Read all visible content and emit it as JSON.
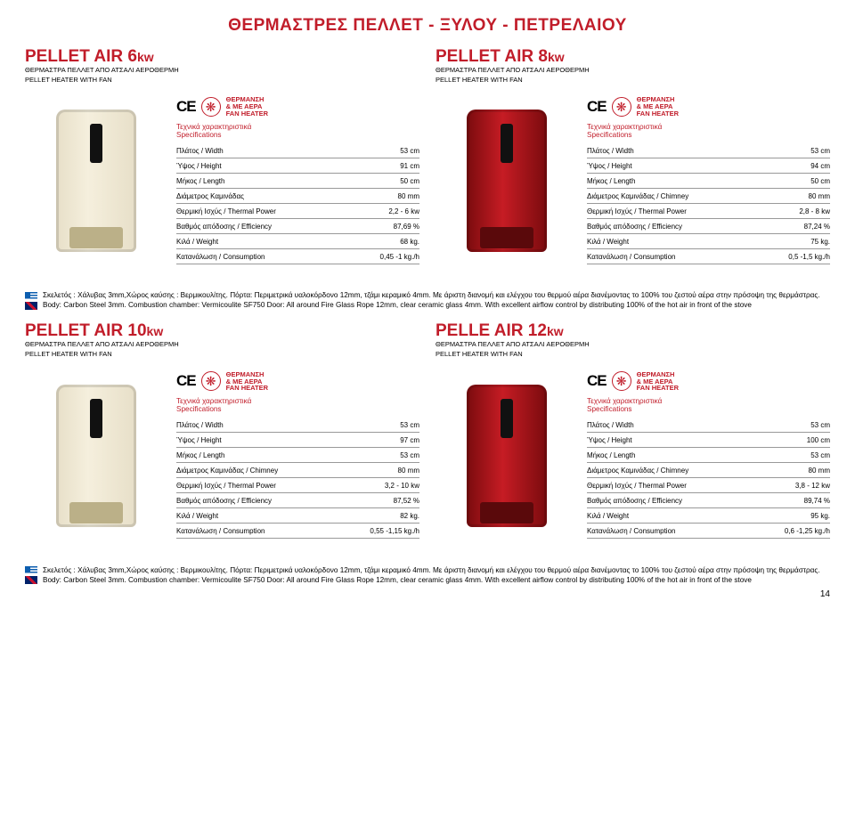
{
  "mainTitle": "ΘΕΡΜΑΣΤΡΕΣ ΠΕΛΛΕΤ - ΞΥΛΟΥ - ΠΕΤΡΕΛΑΙΟΥ",
  "ce": "CE",
  "fanGlyph": "❋",
  "fanHeater": {
    "l1": "ΘΕΡΜΑΝΣΗ",
    "l2": "& ΜΕ ΑΕΡΑ",
    "l3": "FAN HEATER"
  },
  "specHead": {
    "l1": "Τεχνικά χαρακτηριστικά",
    "l2": "Specifications"
  },
  "labels": {
    "width": "Πλάτος / Width",
    "height": "Ύψος / Height",
    "length": "Μήκος / Length",
    "chimney": "Διάμετρος Καμινάδας",
    "chimney2": "Διάμετρος Καμινάδας / Chimney",
    "power": "Θερμική Ισχύς / Thermal Power",
    "eff": "Βαθμός απόδοσης / Efficiency",
    "weight": "Κιλά / Weight",
    "cons": "Κατανάλωση / Consumption"
  },
  "products": [
    {
      "name": "PELLET AIR 6",
      "kw": "kw",
      "sub1": "ΘΕΡΜΑΣΤΡΑ ΠΕΛΛΕΤ ΑΠΟ ΑΤΣΑΛΙ ΑΕΡΟΘΕΡΜΗ",
      "sub2": "PELLET HEATER WITH FAN",
      "stoveColor": "cream",
      "specs": {
        "width": "53 cm",
        "height": "91 cm",
        "length": "50 cm",
        "chimneyLabel": "chimney",
        "chimney": "80 mm",
        "power": "2,2 - 6 kw",
        "eff": "87,69 %",
        "weight": "68 kg.",
        "cons": "0,45 -1 kg./h"
      }
    },
    {
      "name": "PELLET AIR 8",
      "kw": "kw",
      "sub1": "ΘΕΡΜΑΣΤΡΑ ΠΕΛΛΕΤ ΑΠΟ ΑΤΣΑΛΙ ΑΕΡΟΘΕΡΜΗ",
      "sub2": "PELLET HEATER WITH FAN",
      "stoveColor": "red",
      "specs": {
        "width": "53 cm",
        "height": "94 cm",
        "length": "50 cm",
        "chimneyLabel": "chimney2",
        "chimney": "80 mm",
        "power": "2,8 - 8 kw",
        "eff": "87,24 %",
        "weight": "75 kg.",
        "cons": "0,5 -1,5 kg./h"
      }
    },
    {
      "name": "PELLET AIR 10",
      "kw": "kw",
      "sub1": "ΘΕΡΜΑΣΤΡΑ ΠΕΛΛΕΤ ΑΠΟ ΑΤΣΑΛΙ ΑΕΡΟΘΕΡΜΗ",
      "sub2": "PELLET HEATER WITH FAN",
      "stoveColor": "cream",
      "specs": {
        "width": "53 cm",
        "height": "97 cm",
        "length": "53 cm",
        "chimneyLabel": "chimney2",
        "chimney": "80 mm",
        "power": "3,2 - 10 kw",
        "eff": "87,52 %",
        "weight": "82 kg.",
        "cons": "0,55 -1,15 kg./h"
      }
    },
    {
      "name": "PELLE AIR 12",
      "kw": "kw",
      "sub1": "ΘΕΡΜΑΣΤΡΑ ΠΕΛΛΕΤ ΑΠΟ ΑΤΣΑΛΙ ΑΕΡΟΘΕΡΜΗ",
      "sub2": "PELLET HEATER WITH FAN",
      "stoveColor": "red2",
      "specs": {
        "width": "53 cm",
        "height": "100 cm",
        "length": "53 cm",
        "chimneyLabel": "chimney2",
        "chimney": "80 mm",
        "power": "3,8 - 12 kw",
        "eff": "89,74 %",
        "weight": "95 kg.",
        "cons": "0,6 -1,25 kg./h"
      }
    }
  ],
  "notes": {
    "gr": "Σκελετός : Χάλυβας 3mm,Χώρος καύσης : Βερμικουλίτης. Πόρτα: Περιμετρικά υαλοκόρδονο 12mm, τζάμι κεραμικό 4mm. Με άριστη διανομή και ελέγχου του θερμού αέρα διανέμοντας το 100% του ζεστού αέρα στην πρόσοψη της θερμάστρας.",
    "en": "Body: Carbon Steel 3mm. Combustion chamber: Vermicoulite SF750  Door: All around Fire Glass Rope 12mm, clear ceramic glass 4mm. With excellent airflow control by distributing 100% of the hot air in front of the stove"
  },
  "notes2": {
    "gr": "Σκελετός : Χάλυβας 3mm,Χώρος καύσης : Βερμικουλίτης. Πόρτα: Περιμετρικά υαλοκόρδονο 12mm, τζάμι κεραμικό 4mm. Με άριστη διανομή και ελέγχου του θερμού αέρα διανέμοντας το 100% του ζεστού αέρα στην πρόσοψη της θερμάστρας.",
    "en": "Body: Carbon Steel 3mm. Combustion chamber: Vermicoulite SF750  Door: All around Fire Glass Rope 12mm, clear ceramic glass 4mm. With excellent airflow control by distributing 100% of the hot air in front of the stove"
  },
  "pageNumber": "14"
}
